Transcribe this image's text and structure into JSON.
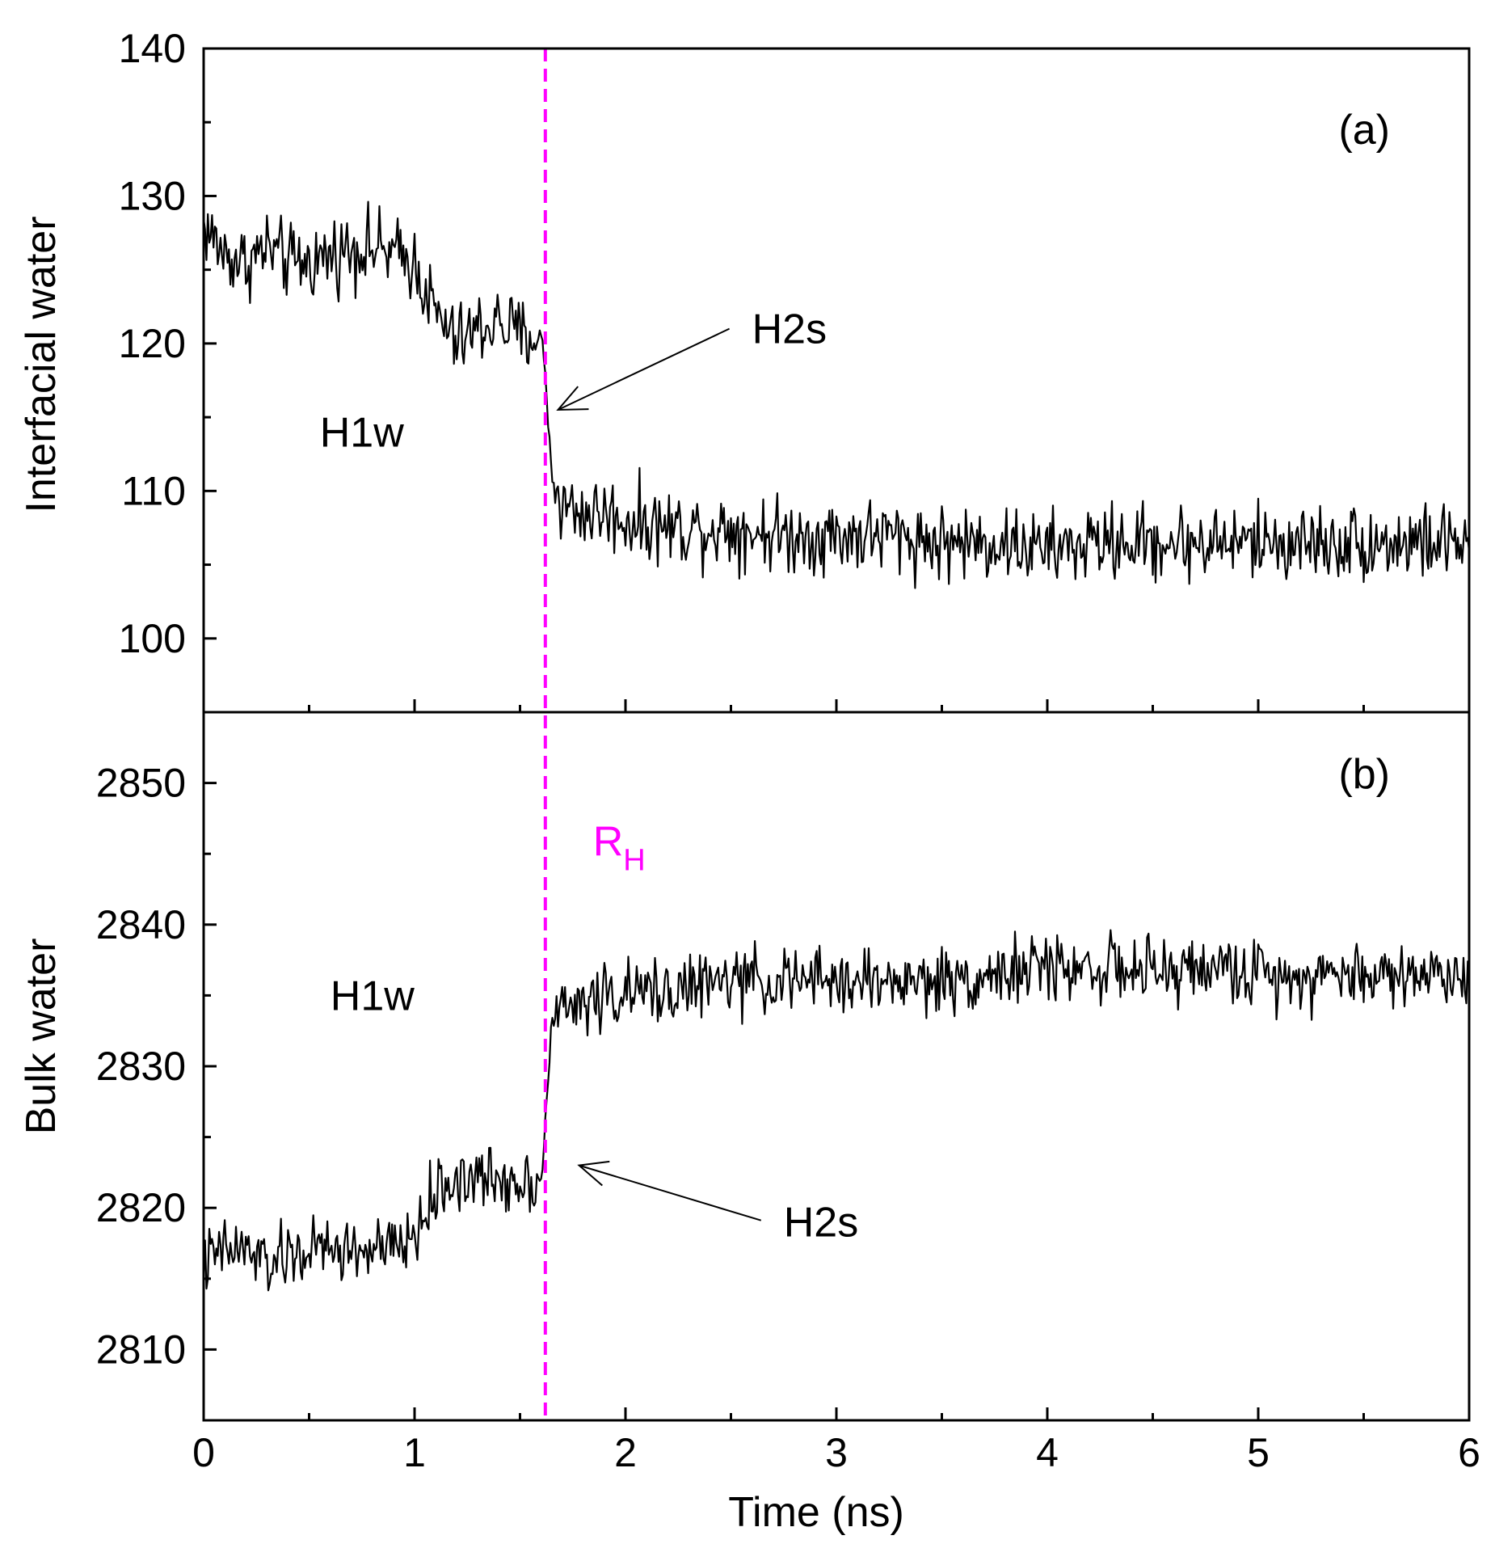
{
  "chart_data": [
    {
      "panel": "(a)",
      "type": "line",
      "ylabel": "Interfacial water",
      "xlabel": "",
      "xlim": [
        0,
        6
      ],
      "ylim": [
        95,
        140
      ],
      "xticks": [
        0,
        1,
        2,
        3,
        4,
        5,
        6
      ],
      "yticks": [
        100,
        110,
        120,
        130,
        140
      ],
      "ytick_labels": [
        "100",
        "110",
        "120",
        "130",
        "140"
      ],
      "grid": false,
      "annotations": [
        {
          "id": "h1w",
          "text": "H1w",
          "x": 0.75,
          "y": 114
        },
        {
          "id": "h2s",
          "text": "H2s",
          "x": 2.6,
          "y": 121,
          "arrow_to": [
            1.68,
            115.5
          ]
        }
      ],
      "series": [
        {
          "color": "#000000",
          "x": [
            0,
            0.1,
            0.2,
            0.3,
            0.4,
            0.5,
            0.6,
            0.7,
            0.8,
            0.9,
            1.0,
            1.1,
            1.2,
            1.3,
            1.4,
            1.5,
            1.6,
            1.62,
            1.65,
            1.7,
            1.8,
            1.9,
            2.0,
            2.25,
            2.5,
            2.75,
            3.0,
            3.25,
            3.5,
            3.75,
            4.0,
            4.25,
            4.5,
            4.75,
            5.0,
            5.25,
            5.5,
            5.75,
            6.0
          ],
          "y": [
            128,
            126,
            125.5,
            126.5,
            125.5,
            125.5,
            126,
            126.5,
            126.5,
            126,
            125.5,
            122,
            120,
            121,
            121.5,
            120.5,
            120.5,
            118,
            111,
            109,
            108.5,
            108.5,
            108,
            107.5,
            107.5,
            107,
            107,
            107,
            106.5,
            106.5,
            106,
            106.5,
            106.5,
            106.5,
            106.5,
            106.5,
            106.5,
            106.5,
            106.5
          ],
          "noise": 2.2
        }
      ]
    },
    {
      "panel": "(b)",
      "type": "line",
      "ylabel": "Bulk water",
      "xlabel": "Time (ns)",
      "xlim": [
        0,
        6
      ],
      "ylim": [
        2805,
        2855
      ],
      "xticks": [
        0,
        1,
        2,
        3,
        4,
        5,
        6
      ],
      "xtick_labels": [
        "0",
        "1",
        "2",
        "3",
        "4",
        "5",
        "6"
      ],
      "yticks": [
        2810,
        2820,
        2830,
        2840,
        2850
      ],
      "ytick_labels": [
        "2810",
        "2820",
        "2830",
        "2840",
        "2850"
      ],
      "grid": false,
      "annotations": [
        {
          "id": "h1w",
          "text": "H1w",
          "x": 0.8,
          "y": 2835
        },
        {
          "id": "h2s",
          "text": "H2s",
          "x": 2.75,
          "y": 2819,
          "arrow_to": [
            1.78,
            2823
          ]
        },
        {
          "id": "rh",
          "text": "R",
          "subscript": "H",
          "x": 1.93,
          "y": 2846
        }
      ],
      "series": [
        {
          "color": "#000000",
          "x": [
            0,
            0.1,
            0.2,
            0.3,
            0.4,
            0.5,
            0.6,
            0.7,
            0.8,
            0.9,
            1.0,
            1.1,
            1.2,
            1.3,
            1.4,
            1.5,
            1.6,
            1.62,
            1.65,
            1.7,
            1.8,
            1.9,
            2.0,
            2.25,
            2.5,
            2.75,
            3.0,
            3.25,
            3.5,
            3.75,
            4.0,
            4.25,
            4.5,
            4.75,
            5.0,
            5.25,
            5.5,
            5.75,
            6.0
          ],
          "y": [
            2816,
            2817,
            2817,
            2816,
            2816.5,
            2817,
            2817,
            2817,
            2817,
            2817,
            2818,
            2821,
            2822,
            2822,
            2822,
            2822,
            2822,
            2826,
            2833,
            2834,
            2834.5,
            2835,
            2835,
            2835.5,
            2836,
            2836,
            2836,
            2836,
            2836,
            2836.5,
            2837,
            2837,
            2836.5,
            2837,
            2836.5,
            2836.5,
            2836.5,
            2836.5,
            2836.5
          ],
          "noise": 2.0
        }
      ]
    }
  ],
  "transition": {
    "x": 1.62,
    "color": "#ff00ff",
    "style": "dashed"
  }
}
